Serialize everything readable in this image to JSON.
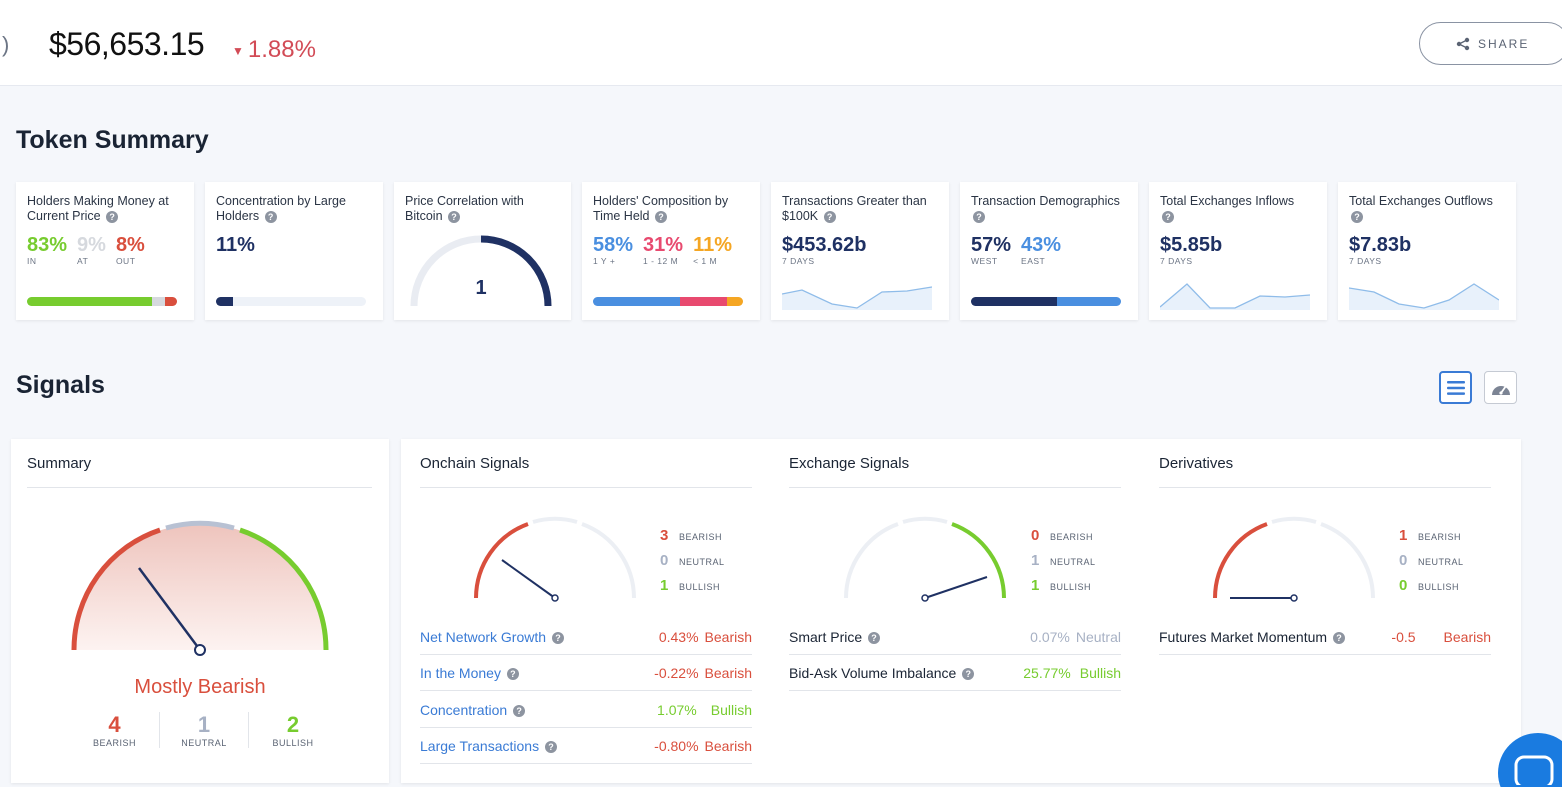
{
  "header": {
    "paren": ")",
    "price": "$56,653.15",
    "change": "1.88%",
    "share_label": "SHARE"
  },
  "token_summary": {
    "title": "Token Summary",
    "cards": [
      {
        "title": "Holders Making Money at Current Price",
        "values": [
          "83%",
          "9%",
          "8%"
        ],
        "labels": [
          "IN",
          "AT",
          "OUT"
        ],
        "bar": [
          83,
          9,
          8
        ]
      },
      {
        "title": "Concentration by Large Holders",
        "value": "11%",
        "bar": [
          11
        ]
      },
      {
        "title": "Price Correlation with Bitcoin",
        "value": "1",
        "gauge": 1
      },
      {
        "title": "Holders' Composition by Time Held",
        "values": [
          "58%",
          "31%",
          "11%"
        ],
        "labels": [
          "1 Y +",
          "1 - 12 M",
          "< 1 M"
        ],
        "bar": [
          58,
          31,
          11
        ]
      },
      {
        "title": "Transactions Greater than $100K",
        "value": "$453.62b",
        "sub": "7 DAYS"
      },
      {
        "title": "Transaction Demographics",
        "values": [
          "57%",
          "43%"
        ],
        "labels": [
          "WEST",
          "EAST"
        ],
        "bar": [
          57,
          43
        ]
      },
      {
        "title": "Total Exchanges Inflows",
        "value": "$5.85b",
        "sub": "7 DAYS"
      },
      {
        "title": "Total Exchanges Outflows",
        "value": "$7.83b",
        "sub": "7 DAYS"
      }
    ]
  },
  "signals": {
    "title": "Signals",
    "summary": {
      "title": "Summary",
      "verdict": "Mostly Bearish",
      "counts": [
        {
          "n": "4",
          "label": "BEARISH"
        },
        {
          "n": "1",
          "label": "NEUTRAL"
        },
        {
          "n": "2",
          "label": "BULLISH"
        }
      ]
    },
    "onchain": {
      "title": "Onchain Signals",
      "legend": [
        {
          "n": "3",
          "label": "BEARISH"
        },
        {
          "n": "0",
          "label": "NEUTRAL"
        },
        {
          "n": "1",
          "label": "BULLISH"
        }
      ],
      "rows": [
        {
          "name": "Net Network Growth",
          "pct": "0.43%",
          "signal": "Bearish"
        },
        {
          "name": "In the Money",
          "pct": "-0.22%",
          "signal": "Bearish"
        },
        {
          "name": "Concentration",
          "pct": "1.07%",
          "signal": "Bullish"
        },
        {
          "name": "Large Transactions",
          "pct": "-0.80%",
          "signal": "Bearish"
        }
      ]
    },
    "exchange": {
      "title": "Exchange Signals",
      "legend": [
        {
          "n": "0",
          "label": "BEARISH"
        },
        {
          "n": "1",
          "label": "NEUTRAL"
        },
        {
          "n": "1",
          "label": "BULLISH"
        }
      ],
      "rows": [
        {
          "name": "Smart Price",
          "pct": "0.07%",
          "signal": "Neutral"
        },
        {
          "name": "Bid-Ask Volume Imbalance",
          "pct": "25.77%",
          "signal": "Bullish"
        }
      ]
    },
    "derivatives": {
      "title": "Derivatives",
      "legend": [
        {
          "n": "1",
          "label": "BEARISH"
        },
        {
          "n": "0",
          "label": "NEUTRAL"
        },
        {
          "n": "0",
          "label": "BULLISH"
        }
      ],
      "rows": [
        {
          "name": "Futures Market Momentum",
          "pct": "-0.5",
          "signal": "Bearish"
        }
      ]
    }
  },
  "colors": {
    "bearish": "#d94f3d",
    "neutral": "#a7b1c4",
    "bullish": "#77cc2f",
    "link": "#3a7bd5",
    "navy": "#1f3163"
  }
}
